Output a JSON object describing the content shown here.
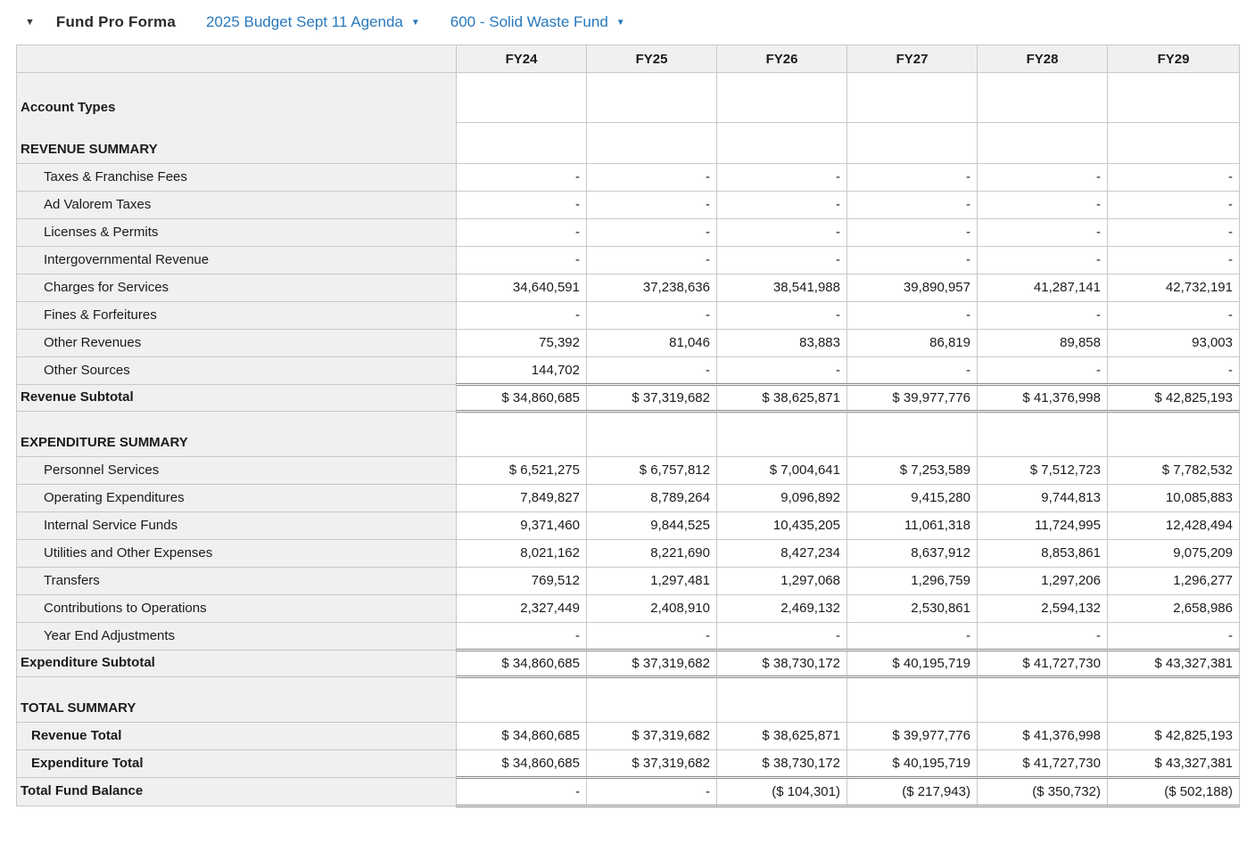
{
  "header": {
    "collapse_icon": "▼",
    "title": "Fund Pro Forma",
    "budget_dropdown": {
      "label": "2025 Budget Sept 11 Agenda",
      "caret": "▼"
    },
    "fund_dropdown": {
      "label": "600 - Solid Waste Fund",
      "caret": "▼"
    },
    "accent_color": "#2878bd"
  },
  "table": {
    "columns": [
      "FY24",
      "FY25",
      "FY26",
      "FY27",
      "FY28",
      "FY29"
    ],
    "rows": [
      {
        "label": "Account Types",
        "type": "spacer-top",
        "values": [
          "",
          "",
          "",
          "",
          "",
          ""
        ]
      },
      {
        "label": "REVENUE SUMMARY",
        "type": "spacer-bottom",
        "values": [
          "",
          "",
          "",
          "",
          "",
          ""
        ]
      },
      {
        "label": "Taxes & Franchise Fees",
        "type": "detail",
        "values": [
          "-",
          "-",
          "-",
          "-",
          "-",
          "-"
        ]
      },
      {
        "label": "Ad Valorem Taxes",
        "type": "detail",
        "values": [
          "-",
          "-",
          "-",
          "-",
          "-",
          "-"
        ]
      },
      {
        "label": "Licenses & Permits",
        "type": "detail",
        "values": [
          "-",
          "-",
          "-",
          "-",
          "-",
          "-"
        ]
      },
      {
        "label": "Intergovernmental Revenue",
        "type": "detail",
        "values": [
          "-",
          "-",
          "-",
          "-",
          "-",
          "-"
        ]
      },
      {
        "label": "Charges for Services",
        "type": "detail",
        "values": [
          "34,640,591",
          "37,238,636",
          "38,541,988",
          "39,890,957",
          "41,287,141",
          "42,732,191"
        ]
      },
      {
        "label": "Fines & Forfeitures",
        "type": "detail",
        "values": [
          "-",
          "-",
          "-",
          "-",
          "-",
          "-"
        ]
      },
      {
        "label": "Other Revenues",
        "type": "detail",
        "values": [
          "75,392",
          "81,046",
          "83,883",
          "86,819",
          "89,858",
          "93,003"
        ]
      },
      {
        "label": "Other Sources",
        "type": "detail",
        "values": [
          "144,702",
          "-",
          "-",
          "-",
          "-",
          "-"
        ]
      },
      {
        "label": "Revenue Subtotal",
        "type": "subtotal",
        "values": [
          "$ 34,860,685",
          "$ 37,319,682",
          "$ 38,625,871",
          "$ 39,977,776",
          "$ 41,376,998",
          "$ 42,825,193"
        ]
      },
      {
        "label": "EXPENDITURE SUMMARY",
        "type": "section",
        "values": [
          "",
          "",
          "",
          "",
          "",
          ""
        ]
      },
      {
        "label": "Personnel Services",
        "type": "detail",
        "values": [
          "$ 6,521,275",
          "$ 6,757,812",
          "$ 7,004,641",
          "$ 7,253,589",
          "$ 7,512,723",
          "$ 7,782,532"
        ]
      },
      {
        "label": "Operating Expenditures",
        "type": "detail",
        "values": [
          "7,849,827",
          "8,789,264",
          "9,096,892",
          "9,415,280",
          "9,744,813",
          "10,085,883"
        ]
      },
      {
        "label": "Internal Service Funds",
        "type": "detail",
        "values": [
          "9,371,460",
          "9,844,525",
          "10,435,205",
          "11,061,318",
          "11,724,995",
          "12,428,494"
        ]
      },
      {
        "label": "Utilities and Other Expenses",
        "type": "detail",
        "values": [
          "8,021,162",
          "8,221,690",
          "8,427,234",
          "8,637,912",
          "8,853,861",
          "9,075,209"
        ]
      },
      {
        "label": "Transfers",
        "type": "detail",
        "values": [
          "769,512",
          "1,297,481",
          "1,297,068",
          "1,296,759",
          "1,297,206",
          "1,296,277"
        ]
      },
      {
        "label": "Contributions to Operations",
        "type": "detail",
        "values": [
          "2,327,449",
          "2,408,910",
          "2,469,132",
          "2,530,861",
          "2,594,132",
          "2,658,986"
        ]
      },
      {
        "label": "Year End Adjustments",
        "type": "detail",
        "values": [
          "-",
          "-",
          "-",
          "-",
          "-",
          "-"
        ]
      },
      {
        "label": "Expenditure Subtotal",
        "type": "subtotal",
        "values": [
          "$ 34,860,685",
          "$ 37,319,682",
          "$ 38,730,172",
          "$ 40,195,719",
          "$ 41,727,730",
          "$ 43,327,381"
        ]
      },
      {
        "label": "TOTAL SUMMARY",
        "type": "section",
        "values": [
          "",
          "",
          "",
          "",
          "",
          ""
        ]
      },
      {
        "label": "Revenue Total",
        "type": "total",
        "values": [
          "$ 34,860,685",
          "$ 37,319,682",
          "$ 38,625,871",
          "$ 39,977,776",
          "$ 41,376,998",
          "$ 42,825,193"
        ]
      },
      {
        "label": "Expenditure Total",
        "type": "total-end",
        "values": [
          "$ 34,860,685",
          "$ 37,319,682",
          "$ 38,730,172",
          "$ 40,195,719",
          "$ 41,727,730",
          "$ 43,327,381"
        ]
      },
      {
        "label": "Total Fund Balance",
        "type": "grand",
        "values": [
          "-",
          "-",
          "($ 104,301)",
          "($ 217,943)",
          "($ 350,732)",
          "($ 502,188)"
        ]
      }
    ]
  }
}
